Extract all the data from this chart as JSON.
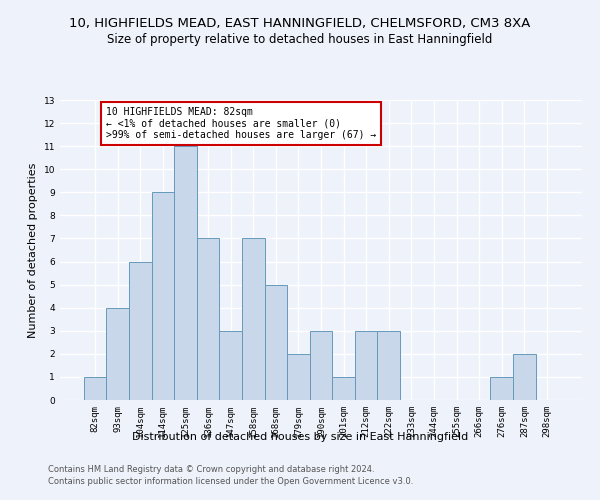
{
  "title_line1": "10, HIGHFIELDS MEAD, EAST HANNINGFIELD, CHELMSFORD, CM3 8XA",
  "title_line2": "Size of property relative to detached houses in East Hanningfield",
  "xlabel": "Distribution of detached houses by size in East Hanningfield",
  "ylabel": "Number of detached properties",
  "categories": [
    "82sqm",
    "93sqm",
    "104sqm",
    "114sqm",
    "125sqm",
    "136sqm",
    "147sqm",
    "158sqm",
    "168sqm",
    "179sqm",
    "190sqm",
    "201sqm",
    "212sqm",
    "222sqm",
    "233sqm",
    "244sqm",
    "255sqm",
    "266sqm",
    "276sqm",
    "287sqm",
    "298sqm"
  ],
  "values": [
    1,
    4,
    6,
    9,
    11,
    7,
    3,
    7,
    5,
    2,
    3,
    1,
    3,
    3,
    0,
    0,
    0,
    0,
    1,
    2,
    0
  ],
  "bar_color": "#c8d8ea",
  "bar_edge_color": "#6699bb",
  "annotation_box_color": "white",
  "annotation_box_edge": "#cc0000",
  "annotation_text_line1": "10 HIGHFIELDS MEAD: 82sqm",
  "annotation_text_line2": "← <1% of detached houses are smaller (0)",
  "annotation_text_line3": ">99% of semi-detached houses are larger (67) →",
  "ylim": [
    0,
    13
  ],
  "yticks": [
    0,
    1,
    2,
    3,
    4,
    5,
    6,
    7,
    8,
    9,
    10,
    11,
    12,
    13
  ],
  "background_color": "#eef2fa",
  "grid_color": "white",
  "footer_line1": "Contains HM Land Registry data © Crown copyright and database right 2024.",
  "footer_line2": "Contains public sector information licensed under the Open Government Licence v3.0.",
  "title_fontsize": 9.5,
  "subtitle_fontsize": 8.5,
  "axis_label_fontsize": 8,
  "tick_fontsize": 6.5,
  "annotation_fontsize": 7,
  "footer_fontsize": 6
}
